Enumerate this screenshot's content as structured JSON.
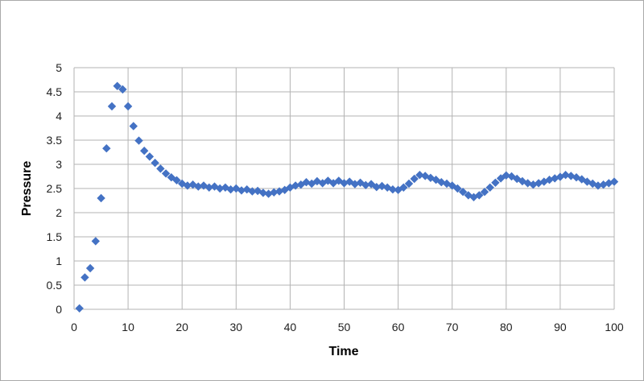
{
  "style": {
    "background": "#FFFFFF",
    "frame_border_color": "#A9A9A9",
    "gridline_color": "#B3B3B3",
    "marker_color": "#4472C4",
    "tick_text_color": "#1F1F1F",
    "axis_title_color": "#000000"
  },
  "chart_data": {
    "type": "scatter",
    "title": "",
    "xlabel": "Time",
    "ylabel": "Pressure",
    "series_name": "Pressure",
    "marker": "diamond",
    "grid": true,
    "legend": false,
    "xlim": [
      0,
      100
    ],
    "ylim": [
      0,
      5
    ],
    "x_tick_interval": 10,
    "y_tick_interval": 0.5,
    "x_ticks": [
      "0",
      "10",
      "20",
      "30",
      "40",
      "50",
      "60",
      "70",
      "80",
      "90",
      "100"
    ],
    "y_ticks": [
      "0",
      "0.5",
      "1",
      "1.5",
      "2",
      "2.5",
      "3",
      "3.5",
      "4",
      "4.5",
      "5"
    ],
    "x": [
      1,
      2,
      3,
      4,
      5,
      6,
      7,
      8,
      9,
      10,
      11,
      12,
      13,
      14,
      15,
      16,
      17,
      18,
      19,
      20,
      21,
      22,
      23,
      24,
      25,
      26,
      27,
      28,
      29,
      30,
      31,
      32,
      33,
      34,
      35,
      36,
      37,
      38,
      39,
      40,
      41,
      42,
      43,
      44,
      45,
      46,
      47,
      48,
      49,
      50,
      51,
      52,
      53,
      54,
      55,
      56,
      57,
      58,
      59,
      60,
      61,
      62,
      63,
      64,
      65,
      66,
      67,
      68,
      69,
      70,
      71,
      72,
      73,
      74,
      75,
      76,
      77,
      78,
      79,
      80,
      81,
      82,
      83,
      84,
      85,
      86,
      87,
      88,
      89,
      90,
      91,
      92,
      93,
      94,
      95,
      96,
      97,
      98,
      99,
      100
    ],
    "y": [
      0.02,
      0.66,
      0.85,
      1.41,
      2.3,
      3.33,
      4.2,
      4.62,
      4.55,
      4.2,
      3.79,
      3.49,
      3.28,
      3.16,
      3.03,
      2.91,
      2.81,
      2.73,
      2.67,
      2.6,
      2.56,
      2.58,
      2.54,
      2.56,
      2.52,
      2.54,
      2.5,
      2.52,
      2.48,
      2.5,
      2.46,
      2.48,
      2.44,
      2.45,
      2.41,
      2.39,
      2.42,
      2.44,
      2.47,
      2.52,
      2.56,
      2.58,
      2.63,
      2.6,
      2.65,
      2.61,
      2.66,
      2.61,
      2.66,
      2.61,
      2.64,
      2.59,
      2.62,
      2.57,
      2.59,
      2.53,
      2.55,
      2.52,
      2.48,
      2.47,
      2.52,
      2.6,
      2.7,
      2.78,
      2.76,
      2.72,
      2.68,
      2.63,
      2.6,
      2.56,
      2.5,
      2.43,
      2.36,
      2.32,
      2.36,
      2.43,
      2.52,
      2.62,
      2.71,
      2.77,
      2.75,
      2.7,
      2.65,
      2.61,
      2.58,
      2.61,
      2.64,
      2.68,
      2.71,
      2.74,
      2.78,
      2.76,
      2.73,
      2.69,
      2.64,
      2.6,
      2.56,
      2.58,
      2.61,
      2.64
    ]
  }
}
